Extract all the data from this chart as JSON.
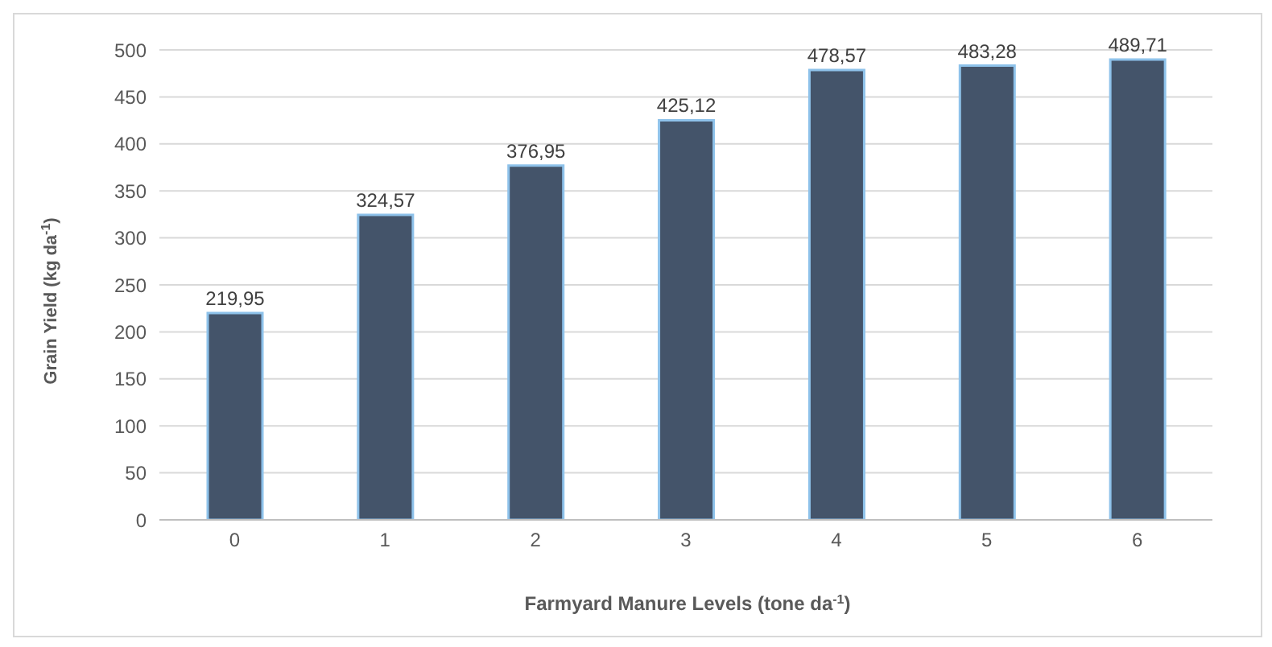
{
  "chart_data": {
    "type": "bar",
    "xlabel": "Farmyard Manure Levels (tone da$^{-1}$)",
    "ylabel": "Grain Yield (kg da$^{-1}$)",
    "categories": [
      "0",
      "1",
      "2",
      "3",
      "4",
      "5",
      "6"
    ],
    "values": [
      219.95,
      324.57,
      376.95,
      425.12,
      478.57,
      483.28,
      489.71
    ],
    "value_labels": [
      "219,95",
      "324,57",
      "376,95",
      "425,12",
      "478,57",
      "483,28",
      "489,71"
    ],
    "color": "#44546a",
    "ylim": [
      0,
      500
    ],
    "yticks": [
      0,
      50,
      100,
      150,
      200,
      250,
      300,
      350,
      400,
      450,
      500
    ],
    "grid": "y",
    "legend": false
  }
}
